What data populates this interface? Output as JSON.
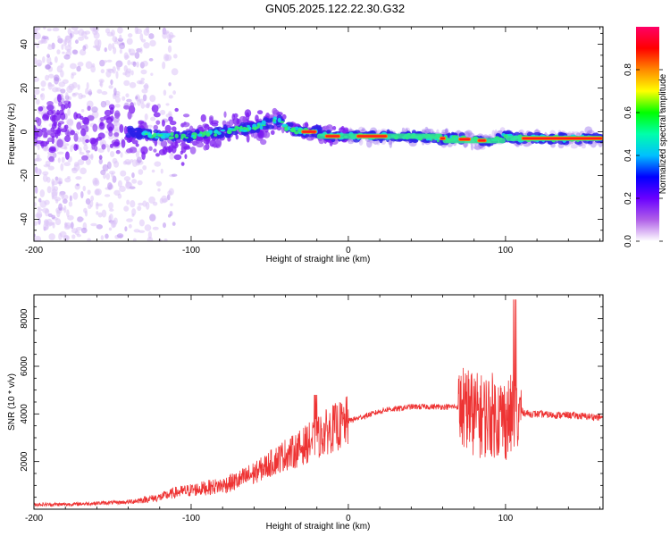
{
  "title": "GN05.2025.122.22.30.G32",
  "chart_data": [
    {
      "type": "heatmap",
      "title": "",
      "xlabel": "Height of straight line (km)",
      "ylabel": "Frequency (Hz)",
      "xlim": [
        -200,
        162
      ],
      "ylim": [
        -50,
        48
      ],
      "xticks": [
        -200,
        -100,
        0,
        100
      ],
      "yticks": [
        -40,
        -20,
        0,
        20,
        40
      ],
      "ridge": {
        "x": [
          -200,
          -180,
          -160,
          -140,
          -120,
          -100,
          -80,
          -60,
          -50,
          -45,
          -40,
          -30,
          -20,
          -10,
          0,
          20,
          40,
          60,
          70,
          80,
          90,
          100,
          110,
          130,
          162
        ],
        "y": [
          0,
          2,
          0,
          0,
          -2,
          -2,
          0,
          2,
          4,
          6,
          2,
          0,
          0,
          -2,
          -2,
          -2,
          -2,
          -3,
          -3,
          -4,
          -4,
          -2,
          -3,
          -3,
          -3
        ]
      },
      "colorbar": {
        "label": "Normalized spectral amplitude",
        "ticks": [
          "0.0",
          "0.2",
          "0.4",
          "0.6",
          "0.8"
        ],
        "range": [
          0,
          1
        ],
        "colors": [
          "#ffffff",
          "#b060e8",
          "#6a00ff",
          "#0000ff",
          "#00c0ff",
          "#00ffaa",
          "#00ff00",
          "#ffff00",
          "#ff8800",
          "#ff0000",
          "#ff0066"
        ]
      },
      "grid": false
    },
    {
      "type": "line",
      "title": "",
      "xlabel": "Height of straight line (km)",
      "ylabel": "SNR (10 * v/v)",
      "xlim": [
        -200,
        162
      ],
      "ylim": [
        0,
        9000
      ],
      "xticks": [
        -200,
        -100,
        0,
        100
      ],
      "yticks": [
        2000,
        4000,
        6000,
        8000
      ],
      "color": "#ee3333",
      "series": [
        {
          "x": [
            -200,
            -180,
            -160,
            -140,
            -130,
            -120,
            -110,
            -100,
            -90,
            -80,
            -70,
            -60,
            -55,
            -50,
            -45,
            -40,
            -35,
            -30,
            -25,
            -20,
            -15,
            -10,
            -5,
            0,
            5,
            10,
            15,
            20,
            25,
            30,
            40,
            50,
            60,
            70,
            75,
            78,
            80,
            85,
            90,
            95,
            100,
            105,
            108,
            110,
            115,
            120,
            130,
            140,
            150,
            162
          ],
          "y": [
            200,
            200,
            250,
            300,
            400,
            500,
            700,
            800,
            900,
            1000,
            1200,
            1500,
            1700,
            1900,
            2100,
            2300,
            2400,
            2600,
            2800,
            3000,
            3200,
            3400,
            3500,
            3700,
            3800,
            3900,
            4000,
            4100,
            4200,
            4200,
            4300,
            4300,
            4300,
            4300,
            4200,
            4100,
            4000,
            3900,
            4000,
            3900,
            3800,
            3900,
            4000,
            4100,
            4000,
            4000,
            3950,
            3950,
            3900,
            3850
          ]
        }
      ],
      "grid": false
    }
  ]
}
